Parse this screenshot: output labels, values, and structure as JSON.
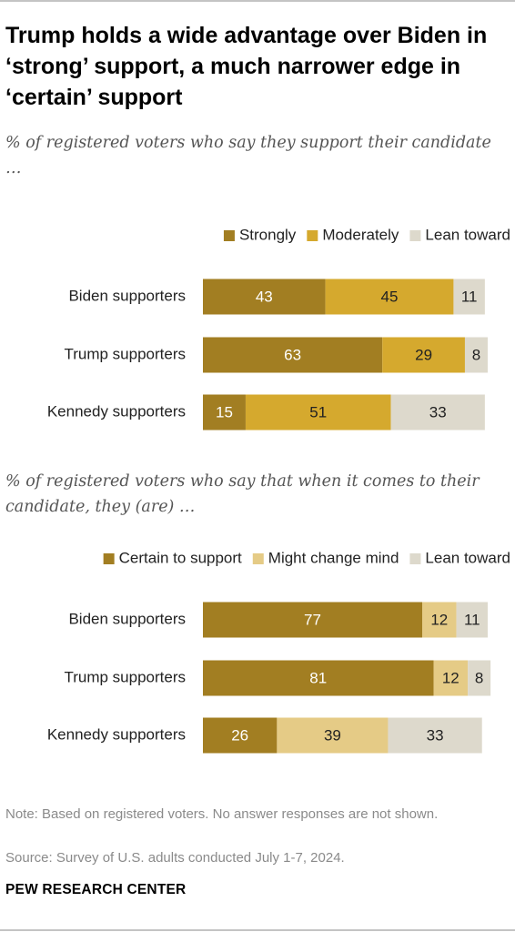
{
  "title": "Trump holds a wide advantage over Biden in ‘strong’ support, a much narrower edge in ‘certain’ support",
  "brand": "PEW RESEARCH CENTER",
  "note": "Note: Based on registered voters. No answer responses are not shown.",
  "source": "Source: Survey of U.S. adults conducted July 1-7, 2024.",
  "chart_data": [
    {
      "type": "bar",
      "orientation": "horizontal",
      "stacked": true,
      "subtitle": "% of registered voters who say they support their candidate …",
      "categories": [
        "Biden supporters",
        "Trump supporters",
        "Kennedy supporters"
      ],
      "legend_position": "top-right",
      "series": [
        {
          "name": "Strongly",
          "color": "#a27e22",
          "values": [
            43,
            63,
            15
          ]
        },
        {
          "name": "Moderately",
          "color": "#d5a92e",
          "values": [
            45,
            29,
            51
          ]
        },
        {
          "name": "Lean toward",
          "color": "#ddd9cc",
          "values": [
            11,
            8,
            33
          ]
        }
      ],
      "xlim": [
        0,
        100
      ]
    },
    {
      "type": "bar",
      "orientation": "horizontal",
      "stacked": true,
      "subtitle": "% of registered voters who say that when it comes to their candidate, they (are) …",
      "categories": [
        "Biden supporters",
        "Trump supporters",
        "Kennedy supporters"
      ],
      "legend_position": "top-right",
      "series": [
        {
          "name": "Certain to support",
          "color": "#a27e22",
          "values": [
            77,
            81,
            26
          ]
        },
        {
          "name": "Might change mind",
          "color": "#e5cb86",
          "values": [
            12,
            12,
            39
          ]
        },
        {
          "name": "Lean toward",
          "color": "#ddd9cc",
          "values": [
            11,
            8,
            33
          ]
        }
      ],
      "xlim": [
        0,
        100
      ]
    }
  ]
}
